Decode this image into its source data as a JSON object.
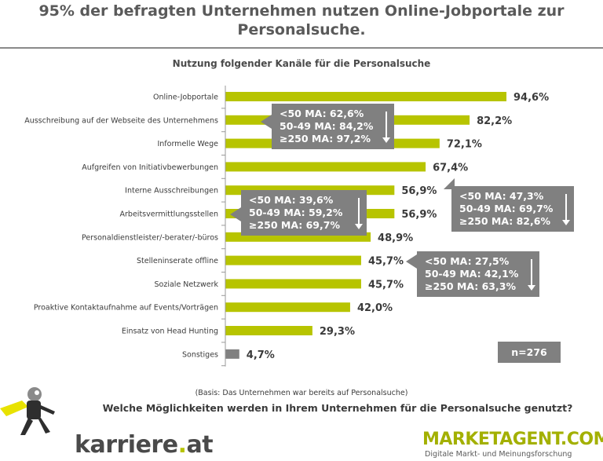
{
  "header": {
    "title_line1": "95% der befragten Unternehmen nutzen Online-Jobportale zur",
    "title_line2": "Personalsuche."
  },
  "chart_data": {
    "type": "bar",
    "orientation": "horizontal",
    "title": "Nutzung folgender Kanäle für die Personalsuche",
    "categories": [
      "Online-Jobportale",
      "Ausschreibung auf der Webseite des Unternehmens",
      "Informelle Wege",
      "Aufgreifen von Initiativbewerbungen",
      "Interne Ausschreibungen",
      "Arbeitsvermittlungsstellen",
      "Personaldienstleister/-berater/-büros",
      "Stelleninserate offline",
      "Soziale Netzwerk",
      "Proaktive Kontaktaufnahme auf Events/Vorträgen",
      "Einsatz von Head Hunting",
      "Sonstiges"
    ],
    "values": [
      94.6,
      82.2,
      72.1,
      67.4,
      56.9,
      56.9,
      48.9,
      45.7,
      45.7,
      42.0,
      29.3,
      4.7
    ],
    "value_labels": [
      "94,6%",
      "82,2%",
      "72,1%",
      "67,4%",
      "56,9%",
      "56,9%",
      "48,9%",
      "45,7%",
      "45,7%",
      "42,0%",
      "29,3%",
      "4,7%"
    ],
    "bar_colors": [
      "#b7c400",
      "#b7c400",
      "#b7c400",
      "#b7c400",
      "#b7c400",
      "#b7c400",
      "#b7c400",
      "#b7c400",
      "#b7c400",
      "#b7c400",
      "#b7c400",
      "#808080"
    ],
    "xlim": [
      0,
      100
    ],
    "grid": false,
    "annotations": [
      {
        "category": "Ausschreibung auf der Webseite des Unternehmens",
        "lines": [
          "<50 MA: 62,6%",
          "50-49 MA: 84,2%",
          "≥250 MA: 97,2%"
        ]
      },
      {
        "category": "Arbeitsvermittlungsstellen",
        "lines": [
          "<50 MA: 39,6%",
          "50-49 MA: 59,2%",
          "≥250 MA: 69,7%"
        ]
      },
      {
        "category": "Interne Ausschreibungen",
        "lines": [
          "<50 MA: 47,3%",
          "50-49 MA: 69,7%",
          "≥250 MA: 82,6%"
        ]
      },
      {
        "category": "Stelleninserate offline",
        "lines": [
          "<50 MA: 27,5%",
          "50-49 MA: 42,1%",
          "≥250 MA: 63,3%"
        ]
      }
    ]
  },
  "sample": "n=276",
  "footer": {
    "basis": "(Basis: Das Unternehmen war bereits auf Personalsuche)",
    "question": "Welche Möglichkeiten werden in Ihrem Unternehmen für die Personalsuche genutzt?",
    "logo_left_main": "karriere",
    "logo_left_dot": ".",
    "logo_left_tld": "at",
    "logo_right": "MARKETAGENT.COM",
    "logo_right_tagline": "Digitale Markt- und Meinungsforschung"
  },
  "colors": {
    "accent": "#b7c400",
    "grey": "#808080"
  }
}
